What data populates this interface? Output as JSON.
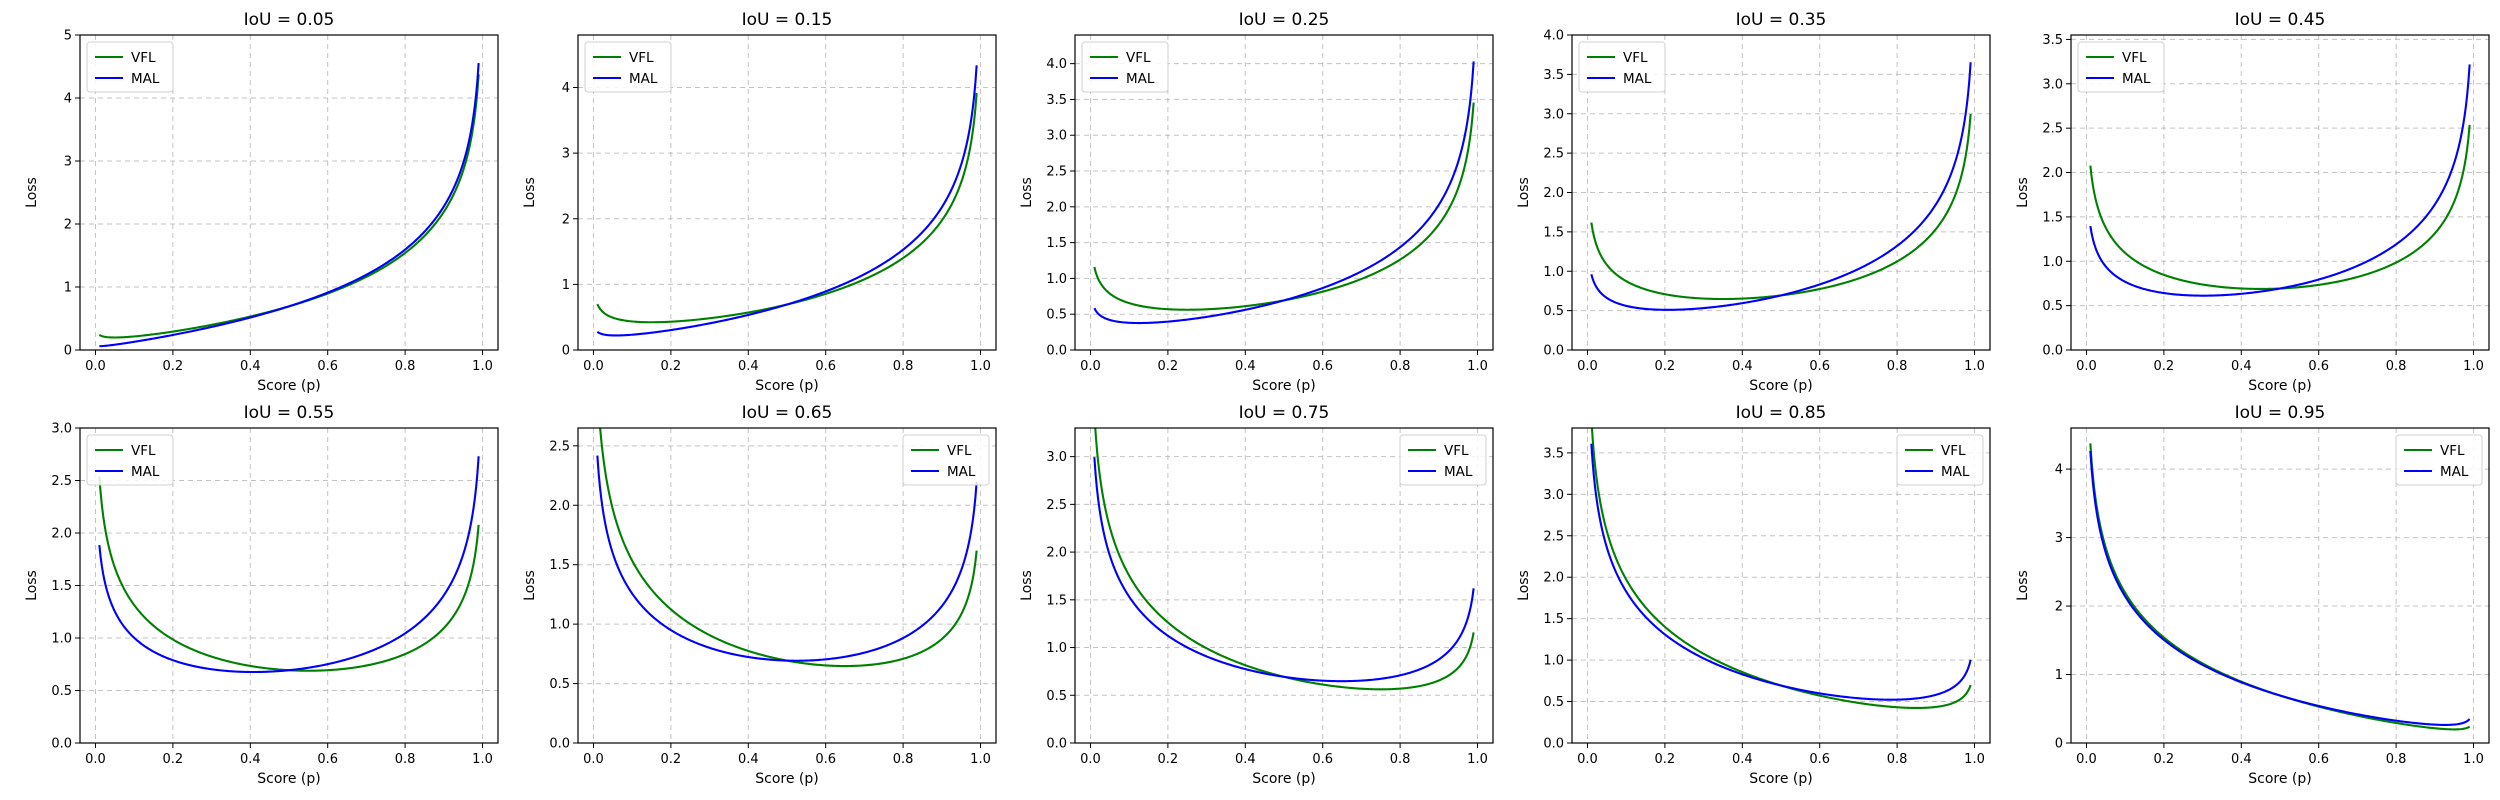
{
  "figure": {
    "rows": 2,
    "cols": 5
  },
  "chart_data": [
    {
      "type": "line",
      "title": "IoU = 0.05",
      "q": 0.05,
      "xlabel": "Score (p)",
      "ylabel": "Loss",
      "xlim": [
        -0.04,
        1.04
      ],
      "ylim": [
        0,
        5
      ],
      "xticks": [
        0.0,
        0.2,
        0.4,
        0.6,
        0.8,
        1.0
      ],
      "xtick_labels": [
        "0.0",
        "0.2",
        "0.4",
        "0.6",
        "0.8",
        "1.0"
      ],
      "yticks": [
        0,
        1,
        2,
        3,
        4,
        5
      ],
      "ytick_labels": [
        "0",
        "1",
        "2",
        "3",
        "4",
        "5"
      ],
      "grid": true,
      "legend_loc": "upper-left",
      "series": [
        {
          "name": "VFL",
          "color": "#008000",
          "gamma": 1
        },
        {
          "name": "MAL",
          "color": "#0000ff",
          "gamma": 1.5
        }
      ]
    },
    {
      "type": "line",
      "title": "IoU = 0.15",
      "q": 0.15,
      "xlabel": "Score (p)",
      "ylabel": "Loss",
      "xlim": [
        -0.04,
        1.04
      ],
      "ylim": [
        0,
        4.8
      ],
      "xticks": [
        0.0,
        0.2,
        0.4,
        0.6,
        0.8,
        1.0
      ],
      "xtick_labels": [
        "0.0",
        "0.2",
        "0.4",
        "0.6",
        "0.8",
        "1.0"
      ],
      "yticks": [
        0,
        1,
        2,
        3,
        4
      ],
      "ytick_labels": [
        "0",
        "1",
        "2",
        "3",
        "4"
      ],
      "grid": true,
      "legend_loc": "upper-left",
      "series": [
        {
          "name": "VFL",
          "color": "#008000",
          "gamma": 1
        },
        {
          "name": "MAL",
          "color": "#0000ff",
          "gamma": 1.5
        }
      ]
    },
    {
      "type": "line",
      "title": "IoU = 0.25",
      "q": 0.25,
      "xlabel": "Score (p)",
      "ylabel": "Loss",
      "xlim": [
        -0.04,
        1.04
      ],
      "ylim": [
        0,
        4.4
      ],
      "xticks": [
        0.0,
        0.2,
        0.4,
        0.6,
        0.8,
        1.0
      ],
      "xtick_labels": [
        "0.0",
        "0.2",
        "0.4",
        "0.6",
        "0.8",
        "1.0"
      ],
      "yticks": [
        0,
        0.5,
        1.0,
        1.5,
        2.0,
        2.5,
        3.0,
        3.5,
        4.0
      ],
      "ytick_labels": [
        "0.0",
        "0.5",
        "1.0",
        "1.5",
        "2.0",
        "2.5",
        "3.0",
        "3.5",
        "4.0"
      ],
      "grid": true,
      "legend_loc": "upper-left",
      "series": [
        {
          "name": "VFL",
          "color": "#008000",
          "gamma": 1
        },
        {
          "name": "MAL",
          "color": "#0000ff",
          "gamma": 1.5
        }
      ]
    },
    {
      "type": "line",
      "title": "IoU = 0.35",
      "q": 0.35,
      "xlabel": "Score (p)",
      "ylabel": "Loss",
      "xlim": [
        -0.04,
        1.04
      ],
      "ylim": [
        0,
        4.0
      ],
      "xticks": [
        0.0,
        0.2,
        0.4,
        0.6,
        0.8,
        1.0
      ],
      "xtick_labels": [
        "0.0",
        "0.2",
        "0.4",
        "0.6",
        "0.8",
        "1.0"
      ],
      "yticks": [
        0,
        0.5,
        1.0,
        1.5,
        2.0,
        2.5,
        3.0,
        3.5,
        4.0
      ],
      "ytick_labels": [
        "0.0",
        "0.5",
        "1.0",
        "1.5",
        "2.0",
        "2.5",
        "3.0",
        "3.5",
        "4.0"
      ],
      "grid": true,
      "legend_loc": "upper-left",
      "series": [
        {
          "name": "VFL",
          "color": "#008000",
          "gamma": 1
        },
        {
          "name": "MAL",
          "color": "#0000ff",
          "gamma": 1.5
        }
      ]
    },
    {
      "type": "line",
      "title": "IoU = 0.45",
      "q": 0.45,
      "xlabel": "Score (p)",
      "ylabel": "Loss",
      "xlim": [
        -0.04,
        1.04
      ],
      "ylim": [
        0,
        3.55
      ],
      "xticks": [
        0.0,
        0.2,
        0.4,
        0.6,
        0.8,
        1.0
      ],
      "xtick_labels": [
        "0.0",
        "0.2",
        "0.4",
        "0.6",
        "0.8",
        "1.0"
      ],
      "yticks": [
        0,
        0.5,
        1.0,
        1.5,
        2.0,
        2.5,
        3.0,
        3.5
      ],
      "ytick_labels": [
        "0.0",
        "0.5",
        "1.0",
        "1.5",
        "2.0",
        "2.5",
        "3.0",
        "3.5"
      ],
      "grid": true,
      "legend_loc": "upper-left",
      "series": [
        {
          "name": "VFL",
          "color": "#008000",
          "gamma": 1
        },
        {
          "name": "MAL",
          "color": "#0000ff",
          "gamma": 1.5
        }
      ]
    },
    {
      "type": "line",
      "title": "IoU = 0.55",
      "q": 0.55,
      "xlabel": "Score (p)",
      "ylabel": "Loss",
      "xlim": [
        -0.04,
        1.04
      ],
      "ylim": [
        0,
        3.0
      ],
      "xticks": [
        0.0,
        0.2,
        0.4,
        0.6,
        0.8,
        1.0
      ],
      "xtick_labels": [
        "0.0",
        "0.2",
        "0.4",
        "0.6",
        "0.8",
        "1.0"
      ],
      "yticks": [
        0,
        0.5,
        1.0,
        1.5,
        2.0,
        2.5,
        3.0
      ],
      "ytick_labels": [
        "0.0",
        "0.5",
        "1.0",
        "1.5",
        "2.0",
        "2.5",
        "3.0"
      ],
      "grid": true,
      "legend_loc": "upper-left",
      "series": [
        {
          "name": "VFL",
          "color": "#008000",
          "gamma": 1
        },
        {
          "name": "MAL",
          "color": "#0000ff",
          "gamma": 1.5
        }
      ]
    },
    {
      "type": "line",
      "title": "IoU = 0.65",
      "q": 0.65,
      "xlabel": "Score (p)",
      "ylabel": "Loss",
      "xlim": [
        -0.04,
        1.04
      ],
      "ylim": [
        0,
        2.65
      ],
      "xticks": [
        0.0,
        0.2,
        0.4,
        0.6,
        0.8,
        1.0
      ],
      "xtick_labels": [
        "0.0",
        "0.2",
        "0.4",
        "0.6",
        "0.8",
        "1.0"
      ],
      "yticks": [
        0,
        0.5,
        1.0,
        1.5,
        2.0,
        2.5
      ],
      "ytick_labels": [
        "0.0",
        "0.5",
        "1.0",
        "1.5",
        "2.0",
        "2.5"
      ],
      "grid": true,
      "legend_loc": "upper-right",
      "series": [
        {
          "name": "VFL",
          "color": "#008000",
          "gamma": 1
        },
        {
          "name": "MAL",
          "color": "#0000ff",
          "gamma": 1.5
        }
      ]
    },
    {
      "type": "line",
      "title": "IoU = 0.75",
      "q": 0.75,
      "xlabel": "Score (p)",
      "ylabel": "Loss",
      "xlim": [
        -0.04,
        1.04
      ],
      "ylim": [
        0,
        3.3
      ],
      "xticks": [
        0.0,
        0.2,
        0.4,
        0.6,
        0.8,
        1.0
      ],
      "xtick_labels": [
        "0.0",
        "0.2",
        "0.4",
        "0.6",
        "0.8",
        "1.0"
      ],
      "yticks": [
        0,
        0.5,
        1.0,
        1.5,
        2.0,
        2.5,
        3.0
      ],
      "ytick_labels": [
        "0.0",
        "0.5",
        "1.0",
        "1.5",
        "2.0",
        "2.5",
        "3.0"
      ],
      "grid": true,
      "legend_loc": "upper-right",
      "series": [
        {
          "name": "VFL",
          "color": "#008000",
          "gamma": 1
        },
        {
          "name": "MAL",
          "color": "#0000ff",
          "gamma": 1.5
        }
      ]
    },
    {
      "type": "line",
      "title": "IoU = 0.85",
      "q": 0.85,
      "xlabel": "Score (p)",
      "ylabel": "Loss",
      "xlim": [
        -0.04,
        1.04
      ],
      "ylim": [
        0,
        3.8
      ],
      "xticks": [
        0.0,
        0.2,
        0.4,
        0.6,
        0.8,
        1.0
      ],
      "xtick_labels": [
        "0.0",
        "0.2",
        "0.4",
        "0.6",
        "0.8",
        "1.0"
      ],
      "yticks": [
        0,
        0.5,
        1.0,
        1.5,
        2.0,
        2.5,
        3.0,
        3.5
      ],
      "ytick_labels": [
        "0.0",
        "0.5",
        "1.0",
        "1.5",
        "2.0",
        "2.5",
        "3.0",
        "3.5"
      ],
      "grid": true,
      "legend_loc": "upper-right",
      "series": [
        {
          "name": "VFL",
          "color": "#008000",
          "gamma": 1
        },
        {
          "name": "MAL",
          "color": "#0000ff",
          "gamma": 1.5
        }
      ]
    },
    {
      "type": "line",
      "title": "IoU = 0.95",
      "q": 0.95,
      "xlabel": "Score (p)",
      "ylabel": "Loss",
      "xlim": [
        -0.04,
        1.04
      ],
      "ylim": [
        0,
        4.6
      ],
      "xticks": [
        0.0,
        0.2,
        0.4,
        0.6,
        0.8,
        1.0
      ],
      "xtick_labels": [
        "0.0",
        "0.2",
        "0.4",
        "0.6",
        "0.8",
        "1.0"
      ],
      "yticks": [
        0,
        1,
        2,
        3,
        4
      ],
      "ytick_labels": [
        "0",
        "1",
        "2",
        "3",
        "4"
      ],
      "grid": true,
      "legend_loc": "upper-right",
      "series": [
        {
          "name": "VFL",
          "color": "#008000",
          "gamma": 1
        },
        {
          "name": "MAL",
          "color": "#0000ff",
          "gamma": 1.5
        }
      ]
    }
  ]
}
